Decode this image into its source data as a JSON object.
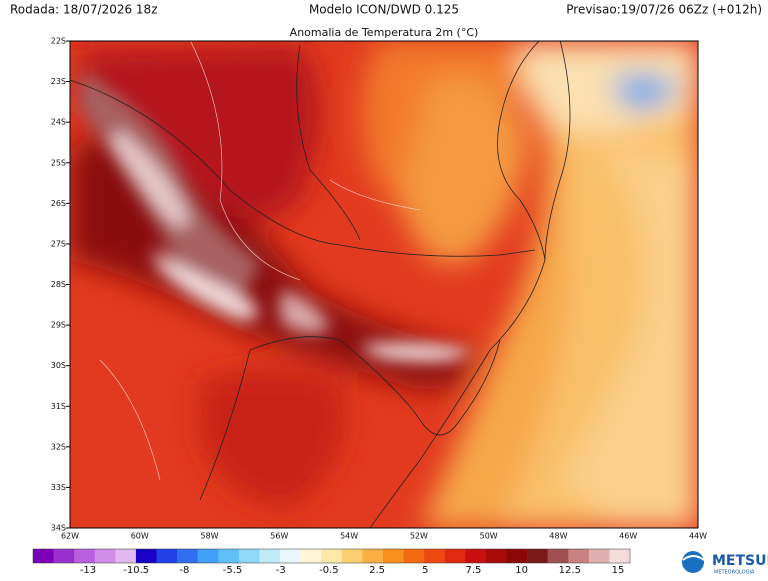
{
  "header": {
    "left": "Rodada: 18/07/2026 18z",
    "center": "Modelo ICON/DWD 0.125",
    "right": "Previsao:19/07/26 06Zz (+012h)"
  },
  "map": {
    "title": "Anomalia de Temperatura 2m (°C)",
    "lat_labels": [
      "22S",
      "23S",
      "24S",
      "25S",
      "26S",
      "27S",
      "28S",
      "29S",
      "30S",
      "31S",
      "32S",
      "33S",
      "34S"
    ],
    "lon_labels": [
      "62W",
      "60W",
      "58W",
      "56W",
      "54W",
      "52W",
      "50W",
      "48W",
      "46W",
      "44W"
    ]
  },
  "colorbar": {
    "labels": [
      "-13",
      "-10.5",
      "-8",
      "-5.5",
      "-3",
      "-0.5",
      "2.5",
      "5",
      "7.5",
      "10",
      "12.5",
      "15"
    ],
    "colors": [
      "#7a00b5",
      "#9a2fd0",
      "#b85ee0",
      "#d08ee8",
      "#e3b8f0",
      "#1800c8",
      "#2040e8",
      "#3070f0",
      "#40a0f8",
      "#60c0f8",
      "#90d8f8",
      "#c0ecf8",
      "#e8f8fc",
      "#fff6d8",
      "#fde8a8",
      "#fcd070",
      "#fab040",
      "#f89020",
      "#f46a10",
      "#ee4a10",
      "#e02a10",
      "#c81010",
      "#aa0a0a",
      "#8a0808",
      "#7a1a1a",
      "#a05050",
      "#c88080",
      "#e0b0b0",
      "#f4dcdc"
    ]
  },
  "logo": {
    "text": "METSUL",
    "subtitle": "METEOROLOGIA"
  }
}
